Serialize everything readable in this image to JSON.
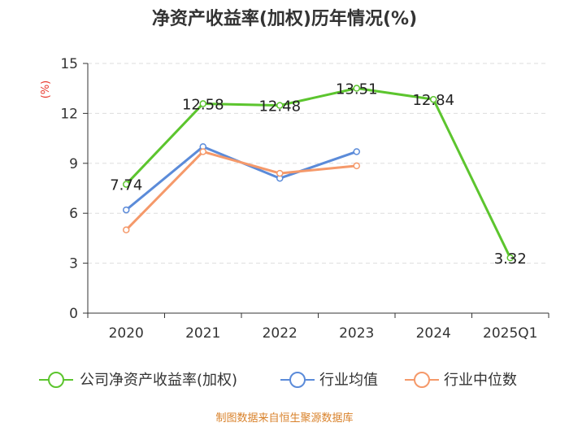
{
  "chart_data": {
    "type": "line",
    "title": "净资产收益率(加权)历年情况(%)",
    "ylabel": "(%)",
    "categories": [
      "2020",
      "2021",
      "2022",
      "2023",
      "2024",
      "2025Q1"
    ],
    "yticks": [
      0,
      3,
      6,
      9,
      12,
      15
    ],
    "ylim": [
      0,
      15
    ],
    "grid": true,
    "legend_position": "bottom",
    "series": [
      {
        "name": "公司净资产收益率(加权)",
        "color": "#5cc52e",
        "values": [
          7.74,
          12.58,
          12.48,
          13.51,
          12.84,
          3.32
        ],
        "labels": [
          "7.74",
          "12.58",
          "12.48",
          "13.51",
          "12.84",
          "3.32"
        ]
      },
      {
        "name": "行业均值",
        "color": "#5b8bd9",
        "values": [
          6.2,
          10.0,
          8.1,
          9.7,
          null,
          null
        ]
      },
      {
        "name": "行业中位数",
        "color": "#f5996a",
        "values": [
          5.0,
          9.7,
          8.4,
          8.85,
          null,
          null
        ]
      }
    ]
  },
  "source": "制图数据来自恒生聚源数据库"
}
